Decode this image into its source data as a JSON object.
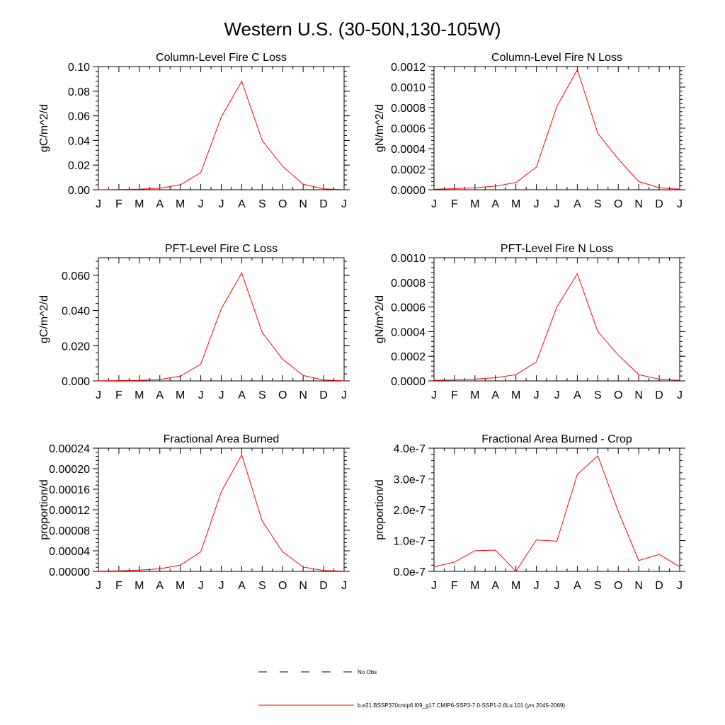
{
  "figure": {
    "title": "Western U.S. (30-50N,130-105W)"
  },
  "legend": {
    "obs_label": "No Obs",
    "model_label": "b.e21.BSSP370cmip6.f09_g17.CMIP6-SSP3-7.0-SSP1-2.6Lu.101 (yrs 2045-2069)",
    "obs_color": "#000000",
    "model_color": "#ff0000"
  },
  "chart_data": [
    {
      "type": "line",
      "title": "Column-Level Fire C Loss",
      "ylabel": "gC/m^2/d",
      "categories": [
        "J",
        "F",
        "M",
        "A",
        "M",
        "J",
        "J",
        "A",
        "S",
        "O",
        "N",
        "D",
        "J"
      ],
      "ylim": [
        0,
        0.1
      ],
      "yticks": [
        "0.00",
        "0.02",
        "0.04",
        "0.06",
        "0.08",
        "0.10"
      ],
      "ytick_values": [
        0,
        0.02,
        0.04,
        0.06,
        0.08,
        0.1
      ],
      "series": [
        {
          "name": "b.e21.BSSP370cmip6.f09_g17.CMIP6-SSP3-7.0-SSP1-2.6Lu.101 (yrs 2045-2069)",
          "color": "#ff0000",
          "values": [
            0.0001,
            0.0002,
            0.0004,
            0.0012,
            0.004,
            0.014,
            0.059,
            0.088,
            0.04,
            0.019,
            0.0045,
            0.0007,
            0.0001
          ]
        }
      ]
    },
    {
      "type": "line",
      "title": "Column-Level Fire N Loss",
      "ylabel": "gN/m^2/d",
      "categories": [
        "J",
        "F",
        "M",
        "A",
        "M",
        "J",
        "J",
        "A",
        "S",
        "O",
        "N",
        "D",
        "J"
      ],
      "ylim": [
        0,
        0.0012
      ],
      "yticks": [
        "0.0000",
        "0.0002",
        "0.0004",
        "0.0006",
        "0.0008",
        "0.0010",
        "0.0012"
      ],
      "ytick_values": [
        0,
        0.0002,
        0.0004,
        0.0006,
        0.0008,
        0.001,
        0.0012
      ],
      "series": [
        {
          "name": "b.e21.BSSP370cmip6.f09_g17.CMIP6-SSP3-7.0-SSP1-2.6Lu.101 (yrs 2045-2069)",
          "color": "#ff0000",
          "values": [
            5e-06,
            1e-05,
            2e-05,
            3.5e-05,
            7e-05,
            0.00022,
            0.00081,
            0.00117,
            0.00055,
            0.0003,
            8e-05,
            2e-05,
            5e-06
          ]
        }
      ]
    },
    {
      "type": "line",
      "title": "PFT-Level Fire C Loss",
      "ylabel": "gC/m^2/d",
      "categories": [
        "J",
        "F",
        "M",
        "A",
        "M",
        "J",
        "J",
        "A",
        "S",
        "O",
        "N",
        "D",
        "J"
      ],
      "ylim": [
        0,
        0.07
      ],
      "yticks": [
        "0.000",
        "0.020",
        "0.040",
        "0.060"
      ],
      "ytick_values": [
        0,
        0.02,
        0.04,
        0.06
      ],
      "series": [
        {
          "name": "b.e21.BSSP370cmip6.f09_g17.CMIP6-SSP3-7.0-SSP1-2.6Lu.101 (yrs 2045-2069)",
          "color": "#ff0000",
          "values": [
            0.0001,
            0.0002,
            0.0003,
            0.0008,
            0.0027,
            0.0095,
            0.041,
            0.0613,
            0.0275,
            0.0123,
            0.0031,
            0.0005,
            0.0001
          ]
        }
      ]
    },
    {
      "type": "line",
      "title": "PFT-Level Fire N Loss",
      "ylabel": "gN/m^2/d",
      "categories": [
        "J",
        "F",
        "M",
        "A",
        "M",
        "J",
        "J",
        "A",
        "S",
        "O",
        "N",
        "D",
        "J"
      ],
      "ylim": [
        0,
        0.001
      ],
      "yticks": [
        "0.0000",
        "0.0002",
        "0.0004",
        "0.0006",
        "0.0008",
        "0.0010"
      ],
      "ytick_values": [
        0,
        0.0002,
        0.0004,
        0.0006,
        0.0008,
        0.001
      ],
      "series": [
        {
          "name": "b.e21.BSSP370cmip6.f09_g17.CMIP6-SSP3-7.0-SSP1-2.6Lu.101 (yrs 2045-2069)",
          "color": "#ff0000",
          "values": [
            4e-06,
            8e-06,
            1.5e-05,
            2.6e-05,
            5e-05,
            0.000155,
            0.0006,
            0.00087,
            0.0004,
            0.00021,
            5.1e-05,
            1.4e-05,
            4e-06
          ]
        }
      ]
    },
    {
      "type": "line",
      "title": "Fractional Area Burned",
      "ylabel": "proportion/d",
      "categories": [
        "J",
        "F",
        "M",
        "A",
        "M",
        "J",
        "J",
        "A",
        "S",
        "O",
        "N",
        "D",
        "J"
      ],
      "ylim": [
        0,
        0.00024
      ],
      "yticks": [
        "0.00000",
        "0.00004",
        "0.00008",
        "0.00012",
        "0.00016",
        "0.00020",
        "0.00024"
      ],
      "ytick_values": [
        0,
        4e-05,
        8e-05,
        0.00012,
        0.00016,
        0.0002,
        0.00024
      ],
      "series": [
        {
          "name": "b.e21.BSSP370cmip6.f09_g17.CMIP6-SSP3-7.0-SSP1-2.6Lu.101 (yrs 2045-2069)",
          "color": "#ff0000",
          "values": [
            5e-07,
            1e-06,
            2.5e-06,
            5e-06,
            1.2e-05,
            3.8e-05,
            0.000155,
            0.000227,
            9.8e-05,
            3.8e-05,
            8.5e-06,
            1.5e-06,
            5e-07
          ]
        }
      ]
    },
    {
      "type": "line",
      "title": "Fractional Area Burned - Crop",
      "ylabel": "proportion/d",
      "categories": [
        "J",
        "F",
        "M",
        "A",
        "M",
        "J",
        "J",
        "A",
        "S",
        "O",
        "N",
        "D",
        "J"
      ],
      "ylim": [
        0,
        4e-07
      ],
      "yticks": [
        "0.0e-7",
        "1.0e-7",
        "2.0e-7",
        "3.0e-7",
        "4.0e-7"
      ],
      "ytick_values": [
        0,
        1e-07,
        2e-07,
        3e-07,
        4e-07
      ],
      "series": [
        {
          "name": "b.e21.BSSP370cmip6.f09_g17.CMIP6-SSP3-7.0-SSP1-2.6Lu.101 (yrs 2045-2069)",
          "color": "#ff0000",
          "values": [
            1.5e-08,
            3e-08,
            6.7e-08,
            6.9e-08,
            0.0,
            1.02e-07,
            9.8e-08,
            3.15e-07,
            3.75e-07,
            1.95e-07,
            3.5e-08,
            5.5e-08,
            1.5e-08
          ]
        }
      ]
    }
  ]
}
